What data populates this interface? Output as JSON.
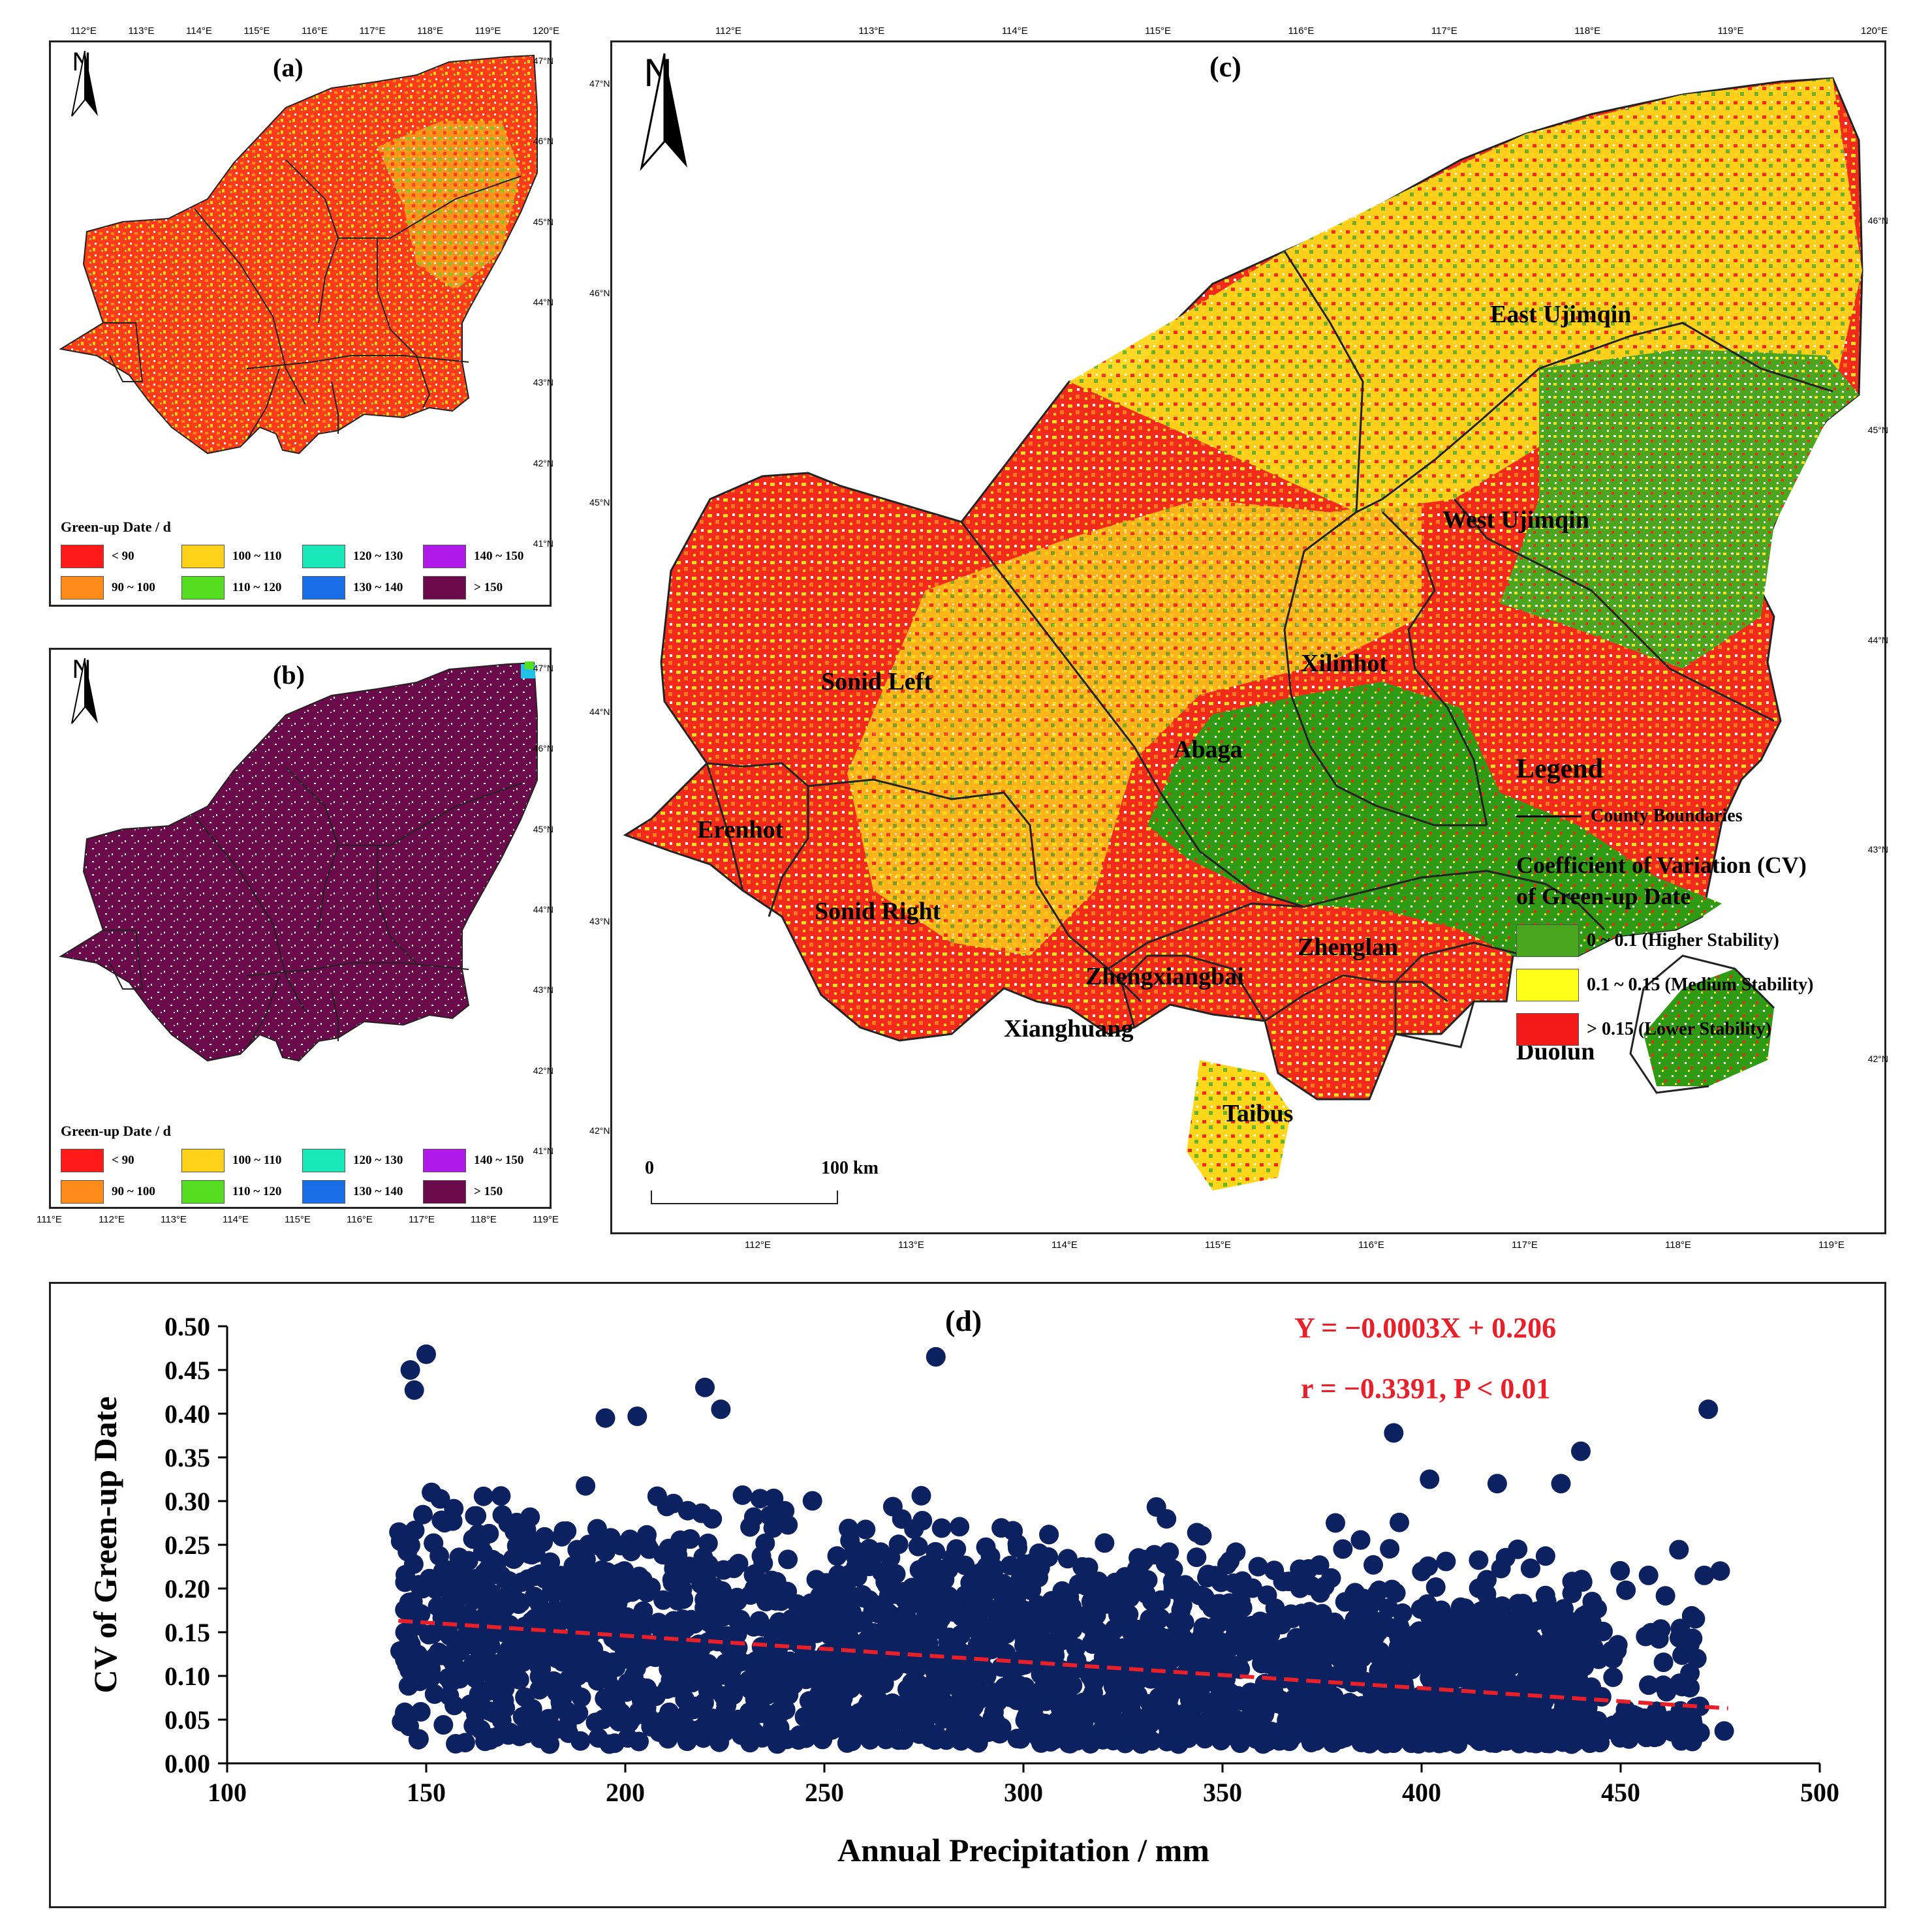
{
  "panels": {
    "a": {
      "label": "(a)",
      "legend_title": "Green-up Date / d",
      "top_ticks": [
        "112°E",
        "113°E",
        "114°E",
        "115°E",
        "116°E",
        "117°E",
        "118°E",
        "119°E",
        "120°E"
      ],
      "right_ticks": [
        "47°N",
        "46°N",
        "45°N",
        "44°N",
        "43°N",
        "42°N",
        "41°N"
      ]
    },
    "b": {
      "label": "(b)",
      "legend_title": "Green-up Date / d",
      "bottom_ticks": [
        "111°E",
        "112°E",
        "113°E",
        "114°E",
        "115°E",
        "116°E",
        "117°E",
        "118°E",
        "119°E"
      ],
      "right_ticks": [
        "47°N",
        "46°N",
        "45°N",
        "44°N",
        "43°N",
        "42°N",
        "41°N"
      ]
    },
    "c": {
      "label": "(c)",
      "top_ticks": [
        "112°E",
        "113°E",
        "114°E",
        "115°E",
        "116°E",
        "117°E",
        "118°E",
        "119°E",
        "120°E"
      ],
      "bottom_ticks": [
        "112°E",
        "113°E",
        "114°E",
        "115°E",
        "116°E",
        "117°E",
        "118°E",
        "119°E"
      ],
      "left_ticks": [
        "47°N",
        "46°N",
        "45°N",
        "44°N",
        "43°N",
        "42°N"
      ],
      "right_ticks": [
        "46°N",
        "45°N",
        "44°N",
        "43°N",
        "42°N"
      ],
      "legend_title": "Legend",
      "boundary_label": "County Boundaries",
      "cv_title_1": "Coefficient of Variation (CV)",
      "cv_title_2": "of Green-up Date",
      "scale_0": "0",
      "scale_100": "100 km"
    }
  },
  "north_label": "N",
  "greenup_classes": [
    {
      "label": "< 90",
      "color": "#ff1a1a"
    },
    {
      "label": "90 ~ 100",
      "color": "#ff8c1a"
    },
    {
      "label": "100 ~ 110",
      "color": "#ffd21a"
    },
    {
      "label": "110 ~ 120",
      "color": "#55dd22"
    },
    {
      "label": "120 ~ 130",
      "color": "#1ae8b8"
    },
    {
      "label": "130 ~ 140",
      "color": "#1a6ee8"
    },
    {
      "label": "140 ~ 150",
      "color": "#b01ae8"
    },
    {
      "label": "> 150",
      "color": "#6b0a4a"
    }
  ],
  "cv_classes": [
    {
      "label": "0 ~ 0.1 (Higher Stability)",
      "color": "#4aa61e"
    },
    {
      "label": "0.1 ~ 0.15 (Medium Stability)",
      "color": "#ffff1a"
    },
    {
      "label": "> 0.15 (Lower Stability)",
      "color": "#f21a1a"
    }
  ],
  "counties": [
    "East Ujimqin",
    "West Ujimqin",
    "Xilinhot",
    "Sonid Left",
    "Abaga",
    "Erenhot",
    "Sonid Right",
    "Zhenglan",
    "Zhengxiangbai",
    "Xianghuang",
    "Duolun",
    "Taibus"
  ],
  "chart_data": {
    "type": "scatter",
    "title": "(d)",
    "xlabel": "Annual Precipitation / mm",
    "ylabel": "CV of Green-up Date",
    "xlim": [
      100,
      500
    ],
    "ylim": [
      0.0,
      0.5
    ],
    "xticks": [
      100,
      150,
      200,
      250,
      300,
      350,
      400,
      450,
      500
    ],
    "yticks": [
      "0.00",
      "0.05",
      "0.10",
      "0.15",
      "0.20",
      "0.25",
      "0.30",
      "0.35",
      "0.40",
      "0.45",
      "0.50"
    ],
    "equation": "Y = −0.0003X + 0.206",
    "stats": "r = −0.3391, P < 0.01",
    "fit": {
      "slope": -0.0003,
      "intercept": 0.206,
      "x_range": [
        143,
        477
      ],
      "color": "#e8202a"
    },
    "point_color": "#0b2160",
    "outliers": [
      {
        "x": 146,
        "y": 0.45
      },
      {
        "x": 150,
        "y": 0.468
      },
      {
        "x": 147,
        "y": 0.427
      },
      {
        "x": 278,
        "y": 0.465
      },
      {
        "x": 220,
        "y": 0.43
      },
      {
        "x": 472,
        "y": 0.405
      },
      {
        "x": 393,
        "y": 0.378
      },
      {
        "x": 440,
        "y": 0.357
      },
      {
        "x": 475,
        "y": 0.22
      },
      {
        "x": 471,
        "y": 0.215
      },
      {
        "x": 476,
        "y": 0.037
      },
      {
        "x": 468,
        "y": 0.025
      },
      {
        "x": 181,
        "y": 0.022
      },
      {
        "x": 196,
        "y": 0.022
      },
      {
        "x": 148,
        "y": 0.027
      },
      {
        "x": 450,
        "y": 0.04
      },
      {
        "x": 457,
        "y": 0.215
      },
      {
        "x": 465,
        "y": 0.06
      },
      {
        "x": 402,
        "y": 0.325
      },
      {
        "x": 419,
        "y": 0.32
      },
      {
        "x": 435,
        "y": 0.32
      },
      {
        "x": 224,
        "y": 0.405
      },
      {
        "x": 203,
        "y": 0.397
      },
      {
        "x": 195,
        "y": 0.395
      }
    ]
  }
}
